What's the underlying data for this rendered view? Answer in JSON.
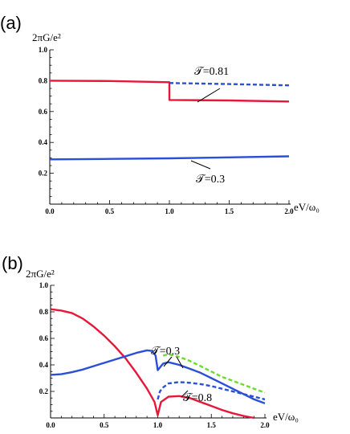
{
  "chart_data": [
    {
      "type": "line",
      "panel_label": "(a)",
      "ylabel": "2πG/e²",
      "xlabel": "eV/ω₀",
      "xlim": [
        0,
        2
      ],
      "ylim": [
        0,
        1
      ],
      "x_ticks": [
        "0.0",
        "0.5",
        "1.0",
        "1.5",
        "2.0"
      ],
      "y_ticks": [
        "0.2",
        "0.4",
        "0.6",
        "0.8",
        "1.0"
      ],
      "grid": false,
      "series": [
        {
          "style": "solid",
          "color": "#e8173a",
          "x": [
            0,
            0.5,
            1.0,
            1.0,
            1.5,
            2.0
          ],
          "y": [
            0.8,
            0.798,
            0.79,
            0.675,
            0.672,
            0.665
          ]
        },
        {
          "style": "dashed",
          "color": "#2b4fd8",
          "x": [
            1.0,
            1.5,
            2.0
          ],
          "y": [
            0.785,
            0.778,
            0.77
          ]
        },
        {
          "style": "solid",
          "color": "#2b4fd8",
          "x": [
            0,
            0.5,
            1.0,
            1.5,
            2.0
          ],
          "y": [
            0.29,
            0.293,
            0.297,
            0.303,
            0.31
          ]
        }
      ],
      "annotations": [
        "𝒯=0.81",
        "𝒯=0.3"
      ]
    },
    {
      "type": "line",
      "panel_label": "(b)",
      "ylabel": "2πG/e²",
      "xlabel": "eV/ω₀",
      "xlim": [
        0,
        2
      ],
      "ylim": [
        0,
        1
      ],
      "x_ticks": [
        "0.0",
        "0.5",
        "1.0",
        "1.5",
        "2.0"
      ],
      "y_ticks": [
        "0.2",
        "0.4",
        "0.6",
        "0.8",
        "1.0"
      ],
      "grid": false,
      "series": [
        {
          "style": "solid",
          "color": "#e8173a",
          "x": [
            0,
            0.1,
            0.2,
            0.3,
            0.4,
            0.5,
            0.6,
            0.7,
            0.8,
            0.9,
            0.97,
            1.0,
            1.03,
            1.1,
            1.2,
            1.3,
            1.4,
            1.5,
            1.6,
            1.7,
            1.8,
            1.9
          ],
          "y": [
            0.82,
            0.81,
            0.79,
            0.75,
            0.69,
            0.62,
            0.54,
            0.45,
            0.34,
            0.22,
            0.12,
            0.02,
            0.12,
            0.16,
            0.165,
            0.15,
            0.12,
            0.09,
            0.06,
            0.035,
            0.015,
            0.0
          ]
        },
        {
          "style": "solid",
          "color": "#2b4fd8",
          "x": [
            0,
            0.1,
            0.2,
            0.3,
            0.4,
            0.5,
            0.6,
            0.7,
            0.8,
            0.9,
            0.95,
            0.98,
            1.0,
            1.02,
            1.05,
            1.1,
            1.2,
            1.3,
            1.4,
            1.5,
            1.6,
            1.7,
            1.8,
            1.9,
            2.0
          ],
          "y": [
            0.325,
            0.33,
            0.345,
            0.365,
            0.39,
            0.415,
            0.44,
            0.465,
            0.49,
            0.51,
            0.505,
            0.47,
            0.36,
            0.38,
            0.41,
            0.42,
            0.4,
            0.37,
            0.34,
            0.3,
            0.26,
            0.22,
            0.18,
            0.14,
            0.11
          ]
        },
        {
          "style": "dashed",
          "color": "#2b4fd8",
          "x": [
            1.0,
            1.02,
            1.05,
            1.1,
            1.2,
            1.3,
            1.4,
            1.5,
            1.6,
            1.7,
            1.8,
            1.9,
            2.0
          ],
          "y": [
            0.14,
            0.2,
            0.23,
            0.26,
            0.27,
            0.265,
            0.255,
            0.24,
            0.22,
            0.2,
            0.18,
            0.16,
            0.14
          ]
        },
        {
          "style": "dashed",
          "color": "#6bdc2a",
          "x": [
            1.05,
            1.1,
            1.2,
            1.3,
            1.4,
            1.5,
            1.6,
            1.7,
            1.8,
            1.9,
            2.0
          ],
          "y": [
            0.47,
            0.48,
            0.46,
            0.43,
            0.39,
            0.35,
            0.31,
            0.28,
            0.25,
            0.22,
            0.19
          ]
        }
      ],
      "annotations": [
        "𝒯=0.3",
        "𝒯=0.8"
      ]
    }
  ]
}
